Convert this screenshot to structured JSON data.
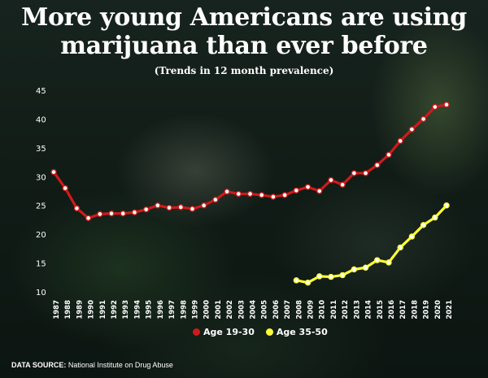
{
  "header": {
    "title_line1": "More young Americans are using",
    "title_line2": "marijuana than ever before",
    "subtitle": "(Trends in 12 month prevalence)"
  },
  "legend": {
    "series1": "Age 19-30",
    "series2": "Age 35-50"
  },
  "source": {
    "label": "DATA SOURCE:",
    "text": "National Institute on Drug Abuse"
  },
  "colors": {
    "series1": "#d01a1a",
    "series2": "#ffff3a"
  },
  "chart_data": {
    "type": "line",
    "x": [
      "1987",
      "1988",
      "1989",
      "1990",
      "1991",
      "1992",
      "1993",
      "1994",
      "1995",
      "1996",
      "1997",
      "1998",
      "1999",
      "2000",
      "2001",
      "2002",
      "2003",
      "2004",
      "2005",
      "2006",
      "2007",
      "2008",
      "2009",
      "2010",
      "2011",
      "2012",
      "2013",
      "2014",
      "2015",
      "2016",
      "2017",
      "2018",
      "2019",
      "2020",
      "2021"
    ],
    "series": [
      {
        "name": "Age 19-30",
        "values": [
          30.8,
          28.0,
          24.5,
          22.8,
          23.5,
          23.6,
          23.6,
          23.8,
          24.3,
          25.0,
          24.6,
          24.7,
          24.4,
          25.0,
          26.0,
          27.4,
          27.0,
          27.0,
          26.8,
          26.5,
          26.8,
          27.6,
          28.2,
          27.5,
          29.4,
          28.6,
          30.6,
          30.6,
          32.0,
          33.8,
          36.2,
          38.2,
          40.0,
          42.1,
          42.5
        ]
      },
      {
        "name": "Age 35-50",
        "values": [
          null,
          null,
          null,
          null,
          null,
          null,
          null,
          null,
          null,
          null,
          null,
          null,
          null,
          null,
          null,
          null,
          null,
          null,
          null,
          null,
          null,
          12.0,
          11.6,
          12.7,
          12.6,
          12.9,
          13.9,
          14.2,
          15.5,
          15.1,
          17.7,
          19.6,
          21.6,
          22.9,
          25.0
        ]
      }
    ],
    "yticks": [
      10,
      15,
      20,
      25,
      30,
      35,
      40,
      45
    ],
    "ylim": [
      10,
      45
    ],
    "grid": false,
    "legend_position": "bottom-center"
  }
}
